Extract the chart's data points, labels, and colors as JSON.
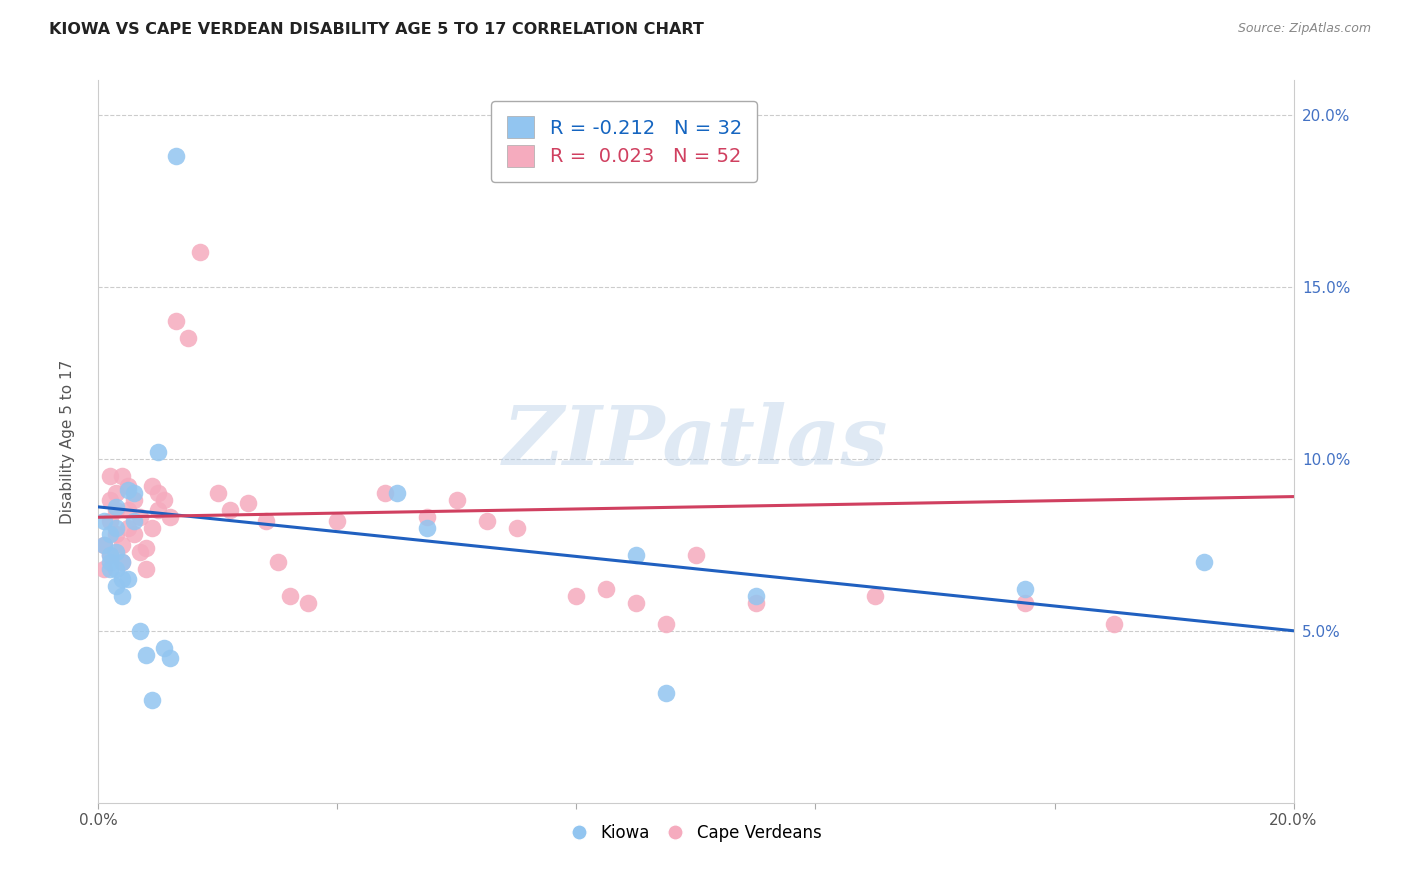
{
  "title": "KIOWA VS CAPE VERDEAN DISABILITY AGE 5 TO 17 CORRELATION CHART",
  "source": "Source: ZipAtlas.com",
  "ylabel": "Disability Age 5 to 17",
  "xlim": [
    0.0,
    0.2
  ],
  "ylim": [
    0.0,
    0.21
  ],
  "yticks": [
    0.05,
    0.1,
    0.15,
    0.2
  ],
  "xticks": [
    0.0,
    0.04,
    0.08,
    0.12,
    0.16,
    0.2
  ],
  "legend_kiowa_R": "-0.212",
  "legend_kiowa_N": "32",
  "legend_cape_R": "0.023",
  "legend_cape_N": "52",
  "kiowa_color": "#92C5F0",
  "cape_color": "#F5ABBE",
  "trend_kiowa_color": "#2060C0",
  "trend_cape_color": "#D04060",
  "watermark_text": "ZIPatlas",
  "kiowa_x": [
    0.001,
    0.001,
    0.002,
    0.002,
    0.002,
    0.002,
    0.003,
    0.003,
    0.003,
    0.003,
    0.003,
    0.004,
    0.004,
    0.004,
    0.005,
    0.005,
    0.006,
    0.006,
    0.007,
    0.008,
    0.009,
    0.01,
    0.011,
    0.012,
    0.013,
    0.05,
    0.055,
    0.09,
    0.095,
    0.11,
    0.155,
    0.185
  ],
  "kiowa_y": [
    0.082,
    0.075,
    0.07,
    0.078,
    0.072,
    0.068,
    0.086,
    0.08,
    0.073,
    0.068,
    0.063,
    0.07,
    0.065,
    0.06,
    0.091,
    0.065,
    0.09,
    0.082,
    0.05,
    0.043,
    0.03,
    0.102,
    0.045,
    0.042,
    0.188,
    0.09,
    0.08,
    0.072,
    0.032,
    0.06,
    0.062,
    0.07
  ],
  "cape_x": [
    0.001,
    0.001,
    0.002,
    0.002,
    0.002,
    0.002,
    0.003,
    0.003,
    0.003,
    0.004,
    0.004,
    0.004,
    0.005,
    0.005,
    0.005,
    0.006,
    0.006,
    0.007,
    0.007,
    0.008,
    0.008,
    0.009,
    0.009,
    0.01,
    0.01,
    0.011,
    0.012,
    0.013,
    0.015,
    0.017,
    0.02,
    0.022,
    0.025,
    0.028,
    0.03,
    0.032,
    0.035,
    0.04,
    0.048,
    0.055,
    0.06,
    0.065,
    0.07,
    0.08,
    0.085,
    0.09,
    0.095,
    0.1,
    0.11,
    0.13,
    0.155,
    0.17
  ],
  "cape_y": [
    0.075,
    0.068,
    0.072,
    0.082,
    0.088,
    0.095,
    0.078,
    0.085,
    0.09,
    0.07,
    0.075,
    0.095,
    0.08,
    0.085,
    0.092,
    0.088,
    0.078,
    0.083,
    0.073,
    0.068,
    0.074,
    0.092,
    0.08,
    0.09,
    0.085,
    0.088,
    0.083,
    0.14,
    0.135,
    0.16,
    0.09,
    0.085,
    0.087,
    0.082,
    0.07,
    0.06,
    0.058,
    0.082,
    0.09,
    0.083,
    0.088,
    0.082,
    0.08,
    0.06,
    0.062,
    0.058,
    0.052,
    0.072,
    0.058,
    0.06,
    0.058,
    0.052
  ],
  "trend_kiowa_x0": 0.0,
  "trend_kiowa_y0": 0.086,
  "trend_kiowa_x1": 0.2,
  "trend_kiowa_y1": 0.05,
  "trend_cape_x0": 0.0,
  "trend_cape_y0": 0.083,
  "trend_cape_x1": 0.2,
  "trend_cape_y1": 0.089
}
